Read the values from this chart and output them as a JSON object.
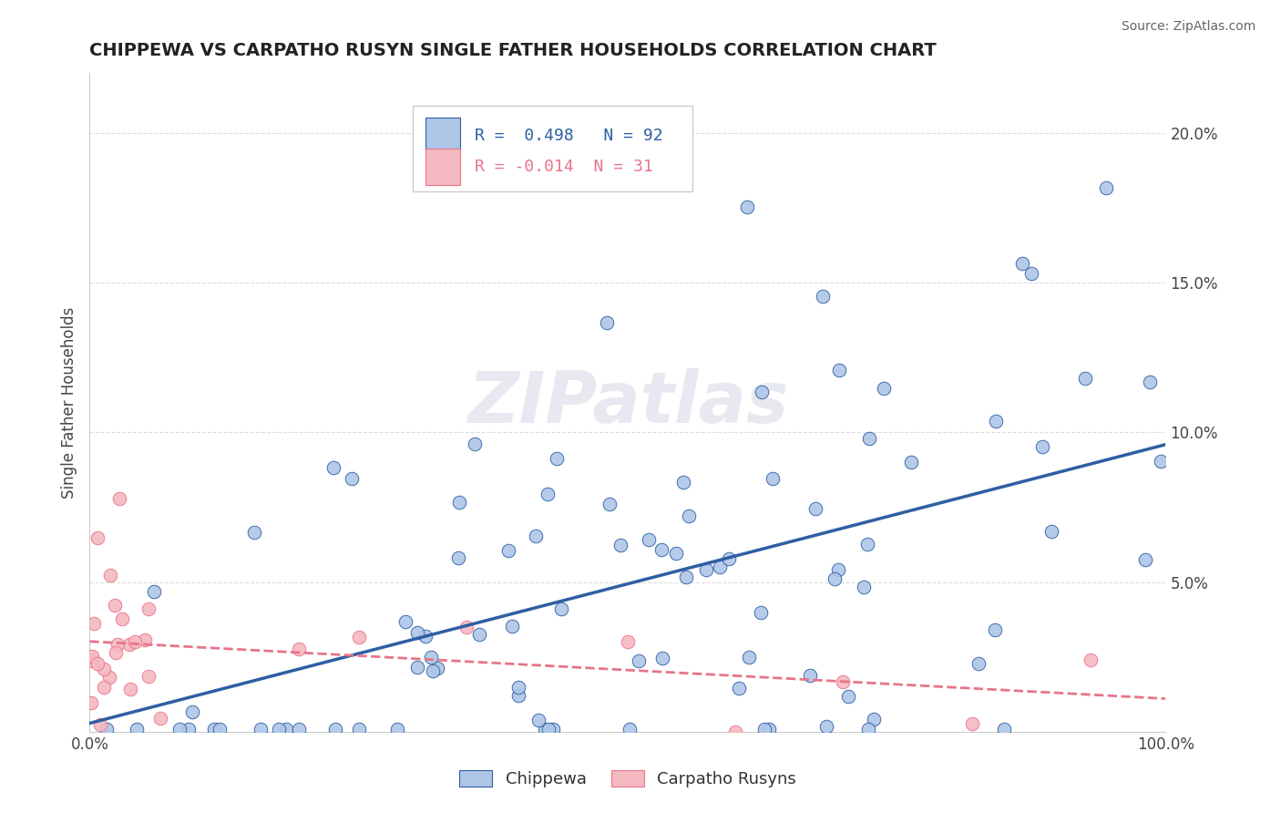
{
  "title": "CHIPPEWA VS CARPATHO RUSYN SINGLE FATHER HOUSEHOLDS CORRELATION CHART",
  "source": "Source: ZipAtlas.com",
  "ylabel": "Single Father Households",
  "chippewa_R": 0.498,
  "chippewa_N": 92,
  "carpatho_R": -0.014,
  "carpatho_N": 31,
  "xlim": [
    0.0,
    1.0
  ],
  "ylim": [
    0.0,
    0.22
  ],
  "ytick_positions": [
    0.0,
    0.05,
    0.1,
    0.15,
    0.2
  ],
  "ytick_labels": [
    "",
    "5.0%",
    "10.0%",
    "15.0%",
    "20.0%"
  ],
  "xtick_positions": [
    0.0,
    0.1,
    0.2,
    0.3,
    0.4,
    0.5,
    0.6,
    0.7,
    0.8,
    0.9,
    1.0
  ],
  "xtick_labels": [
    "0.0%",
    "",
    "",
    "",
    "",
    "",
    "",
    "",
    "",
    "",
    "100.0%"
  ],
  "chippewa_color": "#aec6e8",
  "carpatho_color": "#f4b8c1",
  "chippewa_line_color": "#2e5fa3",
  "carpatho_line_color": "#e8748a",
  "background_color": "#ffffff",
  "watermark_text": "ZIPatlas",
  "watermark_color": "#e8e8f0"
}
